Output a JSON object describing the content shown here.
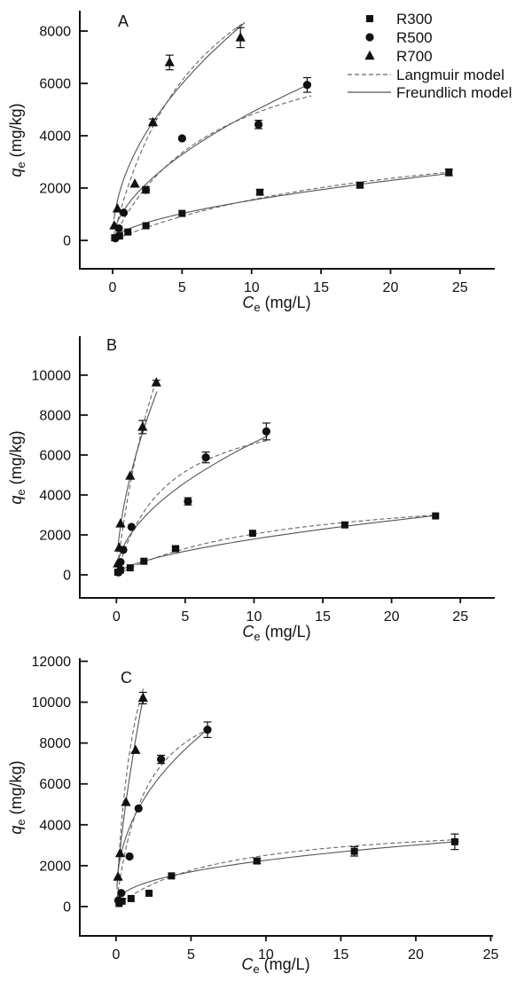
{
  "figure": {
    "title": "",
    "colors": {
      "marker": "#111111",
      "axis": "#111111",
      "curve_solid": "#555555",
      "curve_dashed": "#666666",
      "background": "#ffffff"
    },
    "legend": {
      "position": "top-right-of-panel-A",
      "items": [
        {
          "label": "R300",
          "marker": "square"
        },
        {
          "label": "R500",
          "marker": "circle"
        },
        {
          "label": "R700",
          "marker": "triangle"
        },
        {
          "label": "Langmuir model",
          "line": "dashed"
        },
        {
          "label": "Freundlich model",
          "line": "solid"
        }
      ]
    }
  },
  "chart_data": [
    {
      "type": "scatter",
      "panel_label": "A",
      "xlabel": {
        "symbol": "C",
        "subscript": "e",
        "unit": " (mg/L)"
      },
      "ylabel": {
        "symbol": "q",
        "subscript": "e",
        "unit": " (mg/kg)"
      },
      "xlim": [
        -2.36,
        27.5
      ],
      "ylim": [
        -1085,
        8780
      ],
      "xticks": [
        0,
        5,
        10,
        15,
        20,
        25
      ],
      "yticks": [
        0,
        2000,
        4000,
        6000,
        8000
      ],
      "grid": false,
      "legend_show": true,
      "series": [
        {
          "name": "R300",
          "marker": "square",
          "points": [
            [
              0.15,
              100,
              0
            ],
            [
              0.5,
              170,
              0
            ],
            [
              1.1,
              320,
              0
            ],
            [
              2.4,
              560,
              0
            ],
            [
              5.0,
              1030,
              0
            ],
            [
              10.6,
              1840,
              100
            ],
            [
              17.8,
              2110,
              100
            ],
            [
              24.2,
              2600,
              130
            ]
          ],
          "fits": {
            "langmuir": {
              "qm": 5000,
              "KL": 0.045
            },
            "freundlich": {
              "Kf": 405,
              "n": 0.578
            }
          },
          "fit_x_range": [
            0.15,
            24.4
          ]
        },
        {
          "name": "R500",
          "marker": "circle",
          "points": [
            [
              0.2,
              80,
              0
            ],
            [
              0.45,
              460,
              0
            ],
            [
              0.8,
              1060,
              0
            ],
            [
              2.4,
              1930,
              120
            ],
            [
              5.0,
              3900,
              0
            ],
            [
              10.5,
              4430,
              160
            ],
            [
              14.0,
              5940,
              280
            ]
          ],
          "fits": {
            "langmuir": {
              "qm": 8500,
              "KL": 0.13
            },
            "freundlich": {
              "Kf": 1300,
              "n": 0.575
            }
          },
          "fit_x_range": [
            0.15,
            14.3
          ]
        },
        {
          "name": "R700",
          "marker": "triangle",
          "points": [
            [
              0.12,
              560,
              0
            ],
            [
              0.35,
              1210,
              0
            ],
            [
              1.6,
              2160,
              0
            ],
            [
              2.9,
              4510,
              130
            ],
            [
              4.1,
              6800,
              280
            ],
            [
              9.2,
              7750,
              380
            ]
          ],
          "fits": {
            "langmuir": {
              "qm": 14000,
              "KL": 0.155
            },
            "freundlich": {
              "Kf": 2620,
              "n": 0.513
            }
          },
          "fit_x_range": [
            0.1,
            9.5
          ]
        }
      ]
    },
    {
      "type": "scatter",
      "panel_label": "B",
      "xlabel": {
        "symbol": "C",
        "subscript": "e",
        "unit": " (mg/L)"
      },
      "ylabel": {
        "symbol": "q",
        "subscript": "e",
        "unit": " (mg/kg)"
      },
      "xlim": [
        -2.66,
        27.5
      ],
      "ylim": [
        -1155,
        11950
      ],
      "xticks": [
        0,
        5,
        10,
        15,
        20,
        25
      ],
      "yticks": [
        0,
        2000,
        4000,
        6000,
        8000,
        10000
      ],
      "grid": false,
      "legend_show": false,
      "series": [
        {
          "name": "R300",
          "marker": "square",
          "points": [
            [
              0.1,
              130,
              0
            ],
            [
              0.3,
              240,
              0
            ],
            [
              1.0,
              350,
              0
            ],
            [
              2.0,
              680,
              0
            ],
            [
              4.3,
              1310,
              80
            ],
            [
              9.9,
              2080,
              0
            ],
            [
              16.6,
              2500,
              0
            ],
            [
              23.2,
              2950,
              0
            ]
          ],
          "fits": {
            "langmuir": {
              "qm": 4600,
              "KL": 0.08
            },
            "freundlich": {
              "Kf": 450,
              "n": 0.6
            }
          },
          "fit_x_range": [
            0.1,
            23.3
          ]
        },
        {
          "name": "R500",
          "marker": "circle",
          "points": [
            [
              0.15,
              120,
              0
            ],
            [
              0.3,
              640,
              0
            ],
            [
              0.5,
              1250,
              0
            ],
            [
              1.1,
              2400,
              0
            ],
            [
              5.2,
              3680,
              180
            ],
            [
              6.5,
              5880,
              270
            ],
            [
              10.9,
              7180,
              420
            ]
          ],
          "fits": {
            "langmuir": {
              "qm": 9000,
              "KL": 0.27
            },
            "freundlich": {
              "Kf": 2000,
              "n": 0.52
            }
          },
          "fit_x_range": [
            0.1,
            11.0
          ]
        },
        {
          "name": "R700",
          "marker": "triangle",
          "points": [
            [
              0.1,
              560,
              0
            ],
            [
              0.2,
              1350,
              0
            ],
            [
              0.3,
              2560,
              0
            ],
            [
              1.0,
              4950,
              0
            ],
            [
              1.9,
              7400,
              330
            ],
            [
              2.9,
              9620,
              120
            ]
          ],
          "fits": {
            "langmuir": {
              "qm": 25000,
              "KL": 0.22
            },
            "freundlich": {
              "Kf": 4900,
              "n": 0.58
            }
          },
          "fit_x_range": [
            0.08,
            2.95
          ]
        }
      ]
    },
    {
      "type": "scatter",
      "panel_label": "C",
      "xlabel": {
        "symbol": "C",
        "subscript": "e",
        "unit": " (mg/L)"
      },
      "ylabel": {
        "symbol": "q",
        "subscript": "e",
        "unit": " (mg/kg)"
      },
      "xlim": [
        -2.42,
        25.15
      ],
      "ylim": [
        -1435,
        12150
      ],
      "xticks": [
        0,
        5,
        10,
        15,
        20,
        25
      ],
      "yticks": [
        0,
        2000,
        4000,
        6000,
        8000,
        10000,
        12000
      ],
      "grid": false,
      "legend_show": false,
      "series": [
        {
          "name": "R300",
          "marker": "square",
          "points": [
            [
              0.2,
              150,
              0
            ],
            [
              0.4,
              260,
              0
            ],
            [
              1.0,
              390,
              0
            ],
            [
              2.2,
              650,
              0
            ],
            [
              3.7,
              1500,
              0
            ],
            [
              9.4,
              2230,
              130
            ],
            [
              15.9,
              2700,
              230
            ],
            [
              22.6,
              3170,
              380
            ]
          ],
          "fits": {
            "langmuir": {
              "qm": 4300,
              "KL": 0.14
            },
            "freundlich": {
              "Kf": 874,
              "n": 0.413
            }
          },
          "fit_x_range": [
            0.08,
            22.9
          ]
        },
        {
          "name": "R500",
          "marker": "circle",
          "points": [
            [
              0.15,
              300,
              0
            ],
            [
              0.35,
              660,
              0
            ],
            [
              0.9,
              2450,
              0
            ],
            [
              1.5,
              4800,
              0
            ],
            [
              3.0,
              7200,
              200
            ],
            [
              6.1,
              8650,
              380
            ]
          ],
          "fits": {
            "langmuir": {
              "qm": 11500,
              "KL": 0.5
            },
            "freundlich": {
              "Kf": 4050,
              "n": 0.42
            }
          },
          "fit_x_range": [
            0.07,
            6.25
          ]
        },
        {
          "name": "R700",
          "marker": "triangle",
          "points": [
            [
              0.13,
              1450,
              0
            ],
            [
              0.27,
              2600,
              0
            ],
            [
              0.66,
              5100,
              0
            ],
            [
              1.3,
              7650,
              0
            ],
            [
              1.8,
              10200,
              280
            ]
          ],
          "fits": {
            "langmuir": {
              "qm": 18000,
              "KL": 0.8
            },
            "freundlich": {
              "Kf": 6800,
              "n": 0.69
            }
          },
          "fit_x_range": [
            0.06,
            1.85
          ]
        }
      ]
    }
  ]
}
